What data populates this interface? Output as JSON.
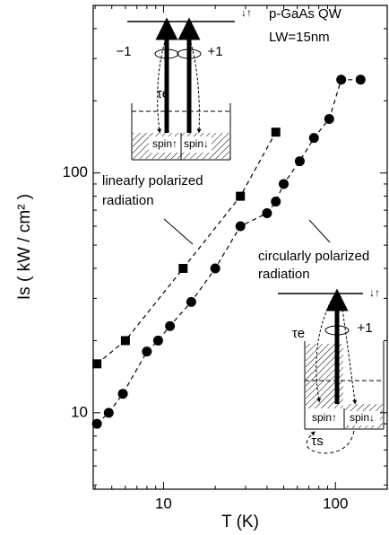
{
  "chart_data": {
    "type": "scatter",
    "title": "p-GaAs  QW",
    "subtitle": "LW=15nm",
    "xlabel": "T (K)",
    "ylabel": "Is ( kW / cm² )",
    "xscale": "log",
    "yscale": "log",
    "xlim": [
      3.9,
      200
    ],
    "ylim": [
      4.8,
      500
    ],
    "xticks": [
      10,
      100
    ],
    "yticks": [
      10,
      100
    ],
    "xminorticks": [
      4,
      5,
      6,
      7,
      8,
      9,
      20,
      30,
      40,
      50,
      60,
      70,
      80,
      90,
      200
    ],
    "yminorticks": [
      5,
      6,
      7,
      8,
      9,
      20,
      30,
      40,
      50,
      60,
      70,
      80,
      90,
      200,
      300,
      400
    ],
    "series": [
      {
        "marker": "square",
        "color": "#000000",
        "x": [
          4.1,
          6,
          13,
          28,
          45
        ],
        "values": [
          16,
          20,
          40,
          80,
          148
        ]
      },
      {
        "marker": "circle",
        "color": "#000000",
        "x": [
          4.1,
          4.8,
          5.8,
          8,
          9.3,
          10.9,
          14.5,
          20,
          28,
          40,
          45,
          50,
          62,
          75,
          92,
          108,
          140
        ],
        "values": [
          9,
          10,
          12,
          18,
          20,
          23,
          29,
          40,
          60,
          68,
          76,
          90,
          112,
          140,
          168,
          245,
          245
        ]
      }
    ],
    "annotations": [
      "linearly polarized",
      "radiation",
      "circularly polarized",
      "radiation",
      "−1",
      "+1",
      "τe",
      "spin↑",
      "spin↓",
      "↓↑",
      "+1",
      "τe",
      "spin↑",
      "spin↓",
      "↓↑",
      "τs"
    ]
  }
}
